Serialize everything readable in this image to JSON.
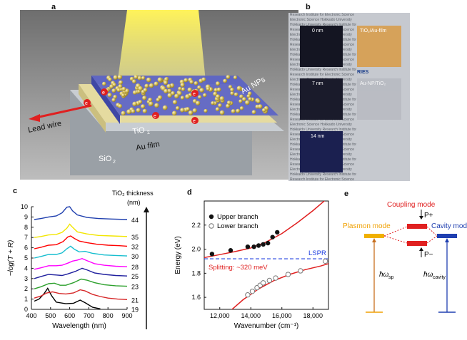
{
  "panels": {
    "a": {
      "label": "a",
      "labels": {
        "au_nps": "Au NPs",
        "lead_wire": "Lead wire",
        "tio2": "TiO",
        "tio2_sub": "2",
        "au_film": "Au film",
        "sio2": "SiO",
        "sio2_sub": "2",
        "electron": "e"
      }
    },
    "b": {
      "label": "b",
      "samples": [
        {
          "label": "0 nm"
        },
        {
          "label": "TiO₂/Au-film"
        },
        {
          "label": "7 nm"
        },
        {
          "label": "Au-NP/TiO₂"
        },
        {
          "label": "14 nm"
        }
      ],
      "watermark": [
        "Research Institute for",
        "Electronic Science",
        "Hokkaido University"
      ],
      "ries": "RIES"
    },
    "c": {
      "label": "c",
      "legend_title": "TiO₂ thickness",
      "legend_unit": "(nm)"
    },
    "d": {
      "label": "d",
      "legend": {
        "upper": "Upper branch",
        "lower": "Lower branch"
      },
      "lspr_label": "LSPR",
      "splitting_label": "Splitting: ~320 meV"
    },
    "e": {
      "label": "e",
      "coupling_mode": "Coupling mode",
      "plasmon_mode": "Plasmon mode",
      "cavity_mode": "Cavity mode",
      "p_plus": "P+",
      "p_minus": "P−",
      "hw": "ħω",
      "hw_sp_sub": "sp",
      "hw_cavity_sub": "cavity"
    }
  },
  "chart_data": [
    {
      "type": "line",
      "panel": "c",
      "xlabel": "Wavelength (nm)",
      "ylabel": "−log(T + R)",
      "xlim": [
        400,
        900
      ],
      "ylim": [
        0,
        10
      ],
      "xticks": [
        400,
        500,
        600,
        700,
        800,
        900
      ],
      "yticks": [
        0,
        1,
        2,
        3,
        4,
        5,
        6,
        7,
        8,
        9,
        10
      ],
      "series": [
        {
          "name": "19",
          "color": "#000000",
          "points": [
            [
              415,
              0.8
            ],
            [
              440,
              1.0
            ],
            [
              465,
              1.5
            ],
            [
              485,
              2.05
            ],
            [
              505,
              1.35
            ],
            [
              530,
              0.7
            ],
            [
              580,
              0.55
            ],
            [
              620,
              0.6
            ],
            [
              655,
              0.9
            ],
            [
              685,
              0.6
            ],
            [
              720,
              0.2
            ],
            [
              760,
              0.05
            ]
          ]
        },
        {
          "name": "21",
          "color": "#d62728",
          "points": [
            [
              415,
              1.1
            ],
            [
              450,
              1.3
            ],
            [
              480,
              1.6
            ],
            [
              510,
              1.7
            ],
            [
              545,
              1.55
            ],
            [
              580,
              1.5
            ],
            [
              620,
              1.6
            ],
            [
              655,
              1.9
            ],
            [
              680,
              1.8
            ],
            [
              720,
              1.45
            ],
            [
              760,
              1.25
            ],
            [
              800,
              1.1
            ],
            [
              850,
              1.0
            ],
            [
              900,
              0.95
            ]
          ]
        },
        {
          "name": "23",
          "color": "#2ca02c",
          "points": [
            [
              415,
              2.0
            ],
            [
              450,
              2.2
            ],
            [
              490,
              2.5
            ],
            [
              520,
              2.55
            ],
            [
              550,
              2.35
            ],
            [
              580,
              2.35
            ],
            [
              620,
              2.6
            ],
            [
              660,
              2.95
            ],
            [
              690,
              2.85
            ],
            [
              730,
              2.6
            ],
            [
              780,
              2.4
            ],
            [
              840,
              2.3
            ],
            [
              900,
              2.25
            ]
          ]
        },
        {
          "name": "25",
          "color": "#1f1f9e",
          "points": [
            [
              415,
              3.0
            ],
            [
              450,
              3.2
            ],
            [
              490,
              3.4
            ],
            [
              530,
              3.35
            ],
            [
              560,
              3.3
            ],
            [
              590,
              3.45
            ],
            [
              630,
              3.7
            ],
            [
              665,
              4.0
            ],
            [
              690,
              3.85
            ],
            [
              730,
              3.55
            ],
            [
              780,
              3.4
            ],
            [
              840,
              3.3
            ],
            [
              900,
              3.25
            ]
          ]
        },
        {
          "name": "28",
          "color": "#ff00ff",
          "points": [
            [
              415,
              3.9
            ],
            [
              450,
              4.05
            ],
            [
              490,
              4.25
            ],
            [
              530,
              4.25
            ],
            [
              560,
              4.3
            ],
            [
              590,
              4.5
            ],
            [
              615,
              4.7
            ],
            [
              640,
              4.8
            ],
            [
              665,
              4.95
            ],
            [
              690,
              4.75
            ],
            [
              730,
              4.45
            ],
            [
              780,
              4.3
            ],
            [
              840,
              4.2
            ],
            [
              900,
              4.15
            ]
          ]
        },
        {
          "name": "30",
          "color": "#17becf",
          "points": [
            [
              415,
              5.0
            ],
            [
              450,
              5.15
            ],
            [
              490,
              5.35
            ],
            [
              530,
              5.35
            ],
            [
              560,
              5.5
            ],
            [
              585,
              5.9
            ],
            [
              605,
              6.15
            ],
            [
              625,
              5.85
            ],
            [
              650,
              5.6
            ],
            [
              680,
              5.65
            ],
            [
              720,
              5.45
            ],
            [
              780,
              5.3
            ],
            [
              840,
              5.25
            ],
            [
              900,
              5.2
            ]
          ]
        },
        {
          "name": "32",
          "color": "#ff0000",
          "points": [
            [
              415,
              5.9
            ],
            [
              450,
              6.05
            ],
            [
              490,
              6.25
            ],
            [
              530,
              6.3
            ],
            [
              565,
              6.6
            ],
            [
              590,
              7.05
            ],
            [
              605,
              7.15
            ],
            [
              625,
              6.9
            ],
            [
              650,
              6.65
            ],
            [
              690,
              6.5
            ],
            [
              740,
              6.35
            ],
            [
              800,
              6.25
            ],
            [
              860,
              6.2
            ],
            [
              900,
              6.15
            ]
          ]
        },
        {
          "name": "35",
          "color": "#f2e600",
          "points": [
            [
              415,
              7.0
            ],
            [
              450,
              7.1
            ],
            [
              490,
              7.25
            ],
            [
              530,
              7.3
            ],
            [
              560,
              7.5
            ],
            [
              585,
              7.9
            ],
            [
              600,
              8.3
            ],
            [
              615,
              8.0
            ],
            [
              640,
              7.55
            ],
            [
              690,
              7.35
            ],
            [
              750,
              7.2
            ],
            [
              820,
              7.15
            ],
            [
              900,
              7.1
            ]
          ]
        },
        {
          "name": "44",
          "color": "#1f3fae",
          "points": [
            [
              415,
              8.75
            ],
            [
              450,
              8.85
            ],
            [
              490,
              9.0
            ],
            [
              530,
              9.1
            ],
            [
              560,
              9.4
            ],
            [
              585,
              9.95
            ],
            [
              600,
              10.0
            ],
            [
              615,
              9.6
            ],
            [
              640,
              9.2
            ],
            [
              690,
              8.95
            ],
            [
              750,
              8.85
            ],
            [
              820,
              8.8
            ],
            [
              900,
              8.75
            ]
          ]
        }
      ]
    },
    {
      "type": "scatter",
      "panel": "d",
      "xlabel": "Wavenumber (cm⁻¹)",
      "ylabel": "Energy (eV)",
      "xlim": [
        11000,
        19000
      ],
      "ylim": [
        1.5,
        2.4
      ],
      "xticks": [
        12000,
        14000,
        16000,
        18000
      ],
      "yticks": [
        1.6,
        1.8,
        2.0,
        2.2
      ],
      "upper_branch": [
        [
          11500,
          1.96
        ],
        [
          12700,
          1.99
        ],
        [
          13800,
          2.02
        ],
        [
          14200,
          2.02
        ],
        [
          14500,
          2.03
        ],
        [
          14800,
          2.04
        ],
        [
          15100,
          2.05
        ],
        [
          15400,
          2.1
        ],
        [
          15700,
          2.14
        ]
      ],
      "lower_branch": [
        [
          13800,
          1.62
        ],
        [
          14100,
          1.65
        ],
        [
          14400,
          1.68
        ],
        [
          14600,
          1.7
        ],
        [
          14800,
          1.72
        ],
        [
          15200,
          1.74
        ],
        [
          15600,
          1.76
        ],
        [
          16400,
          1.79
        ],
        [
          17200,
          1.82
        ],
        [
          18800,
          1.9
        ]
      ],
      "lspr_energy": 1.92,
      "fit_upper": [
        [
          11000,
          1.93
        ],
        [
          12000,
          1.955
        ],
        [
          13000,
          1.98
        ],
        [
          14000,
          2.01
        ],
        [
          15000,
          2.06
        ],
        [
          16000,
          2.13
        ],
        [
          17000,
          2.22
        ],
        [
          18000,
          2.32
        ],
        [
          19000,
          2.43
        ]
      ],
      "fit_lower": [
        [
          12700,
          1.49
        ],
        [
          13500,
          1.58
        ],
        [
          14500,
          1.67
        ],
        [
          15500,
          1.74
        ],
        [
          16500,
          1.79
        ],
        [
          17500,
          1.83
        ],
        [
          18500,
          1.86
        ],
        [
          19000,
          1.88
        ]
      ]
    }
  ]
}
